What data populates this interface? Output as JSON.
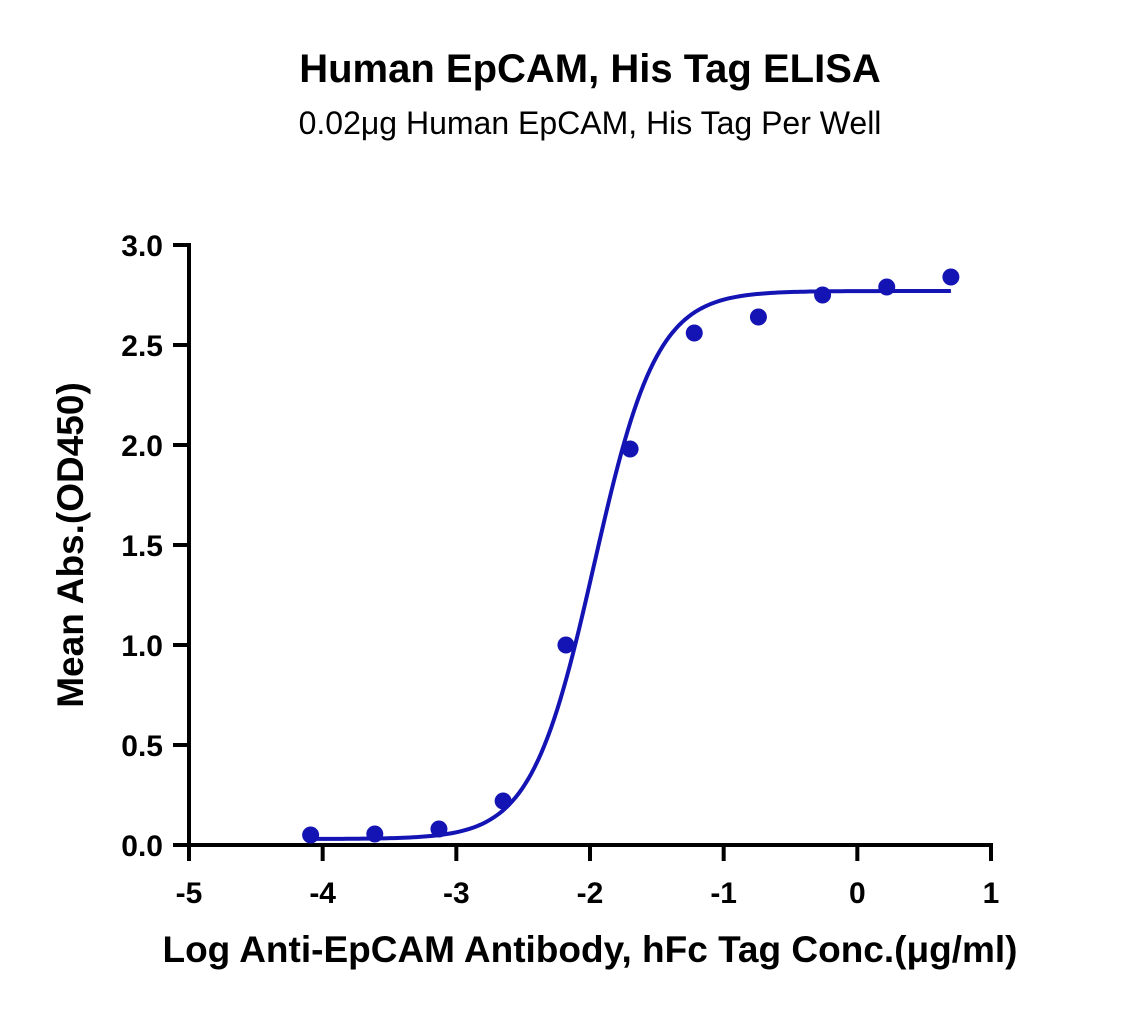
{
  "chart_data": {
    "type": "scatter",
    "title": "Human EpCAM, His Tag ELISA",
    "subtitle": "0.02μg Human EpCAM, His Tag Per Well",
    "xlabel": "Log Anti-EpCAM Antibody, hFc Tag Conc.(μg/ml)",
    "ylabel": "Mean Abs.(OD450)",
    "xlim": [
      -5,
      1
    ],
    "ylim": [
      0,
      3
    ],
    "x_ticks": [
      -5,
      -4,
      -3,
      -2,
      -1,
      0,
      1
    ],
    "x_tick_labels": [
      "-5",
      "-4",
      "-3",
      "-2",
      "-1",
      "0",
      "1"
    ],
    "y_ticks": [
      0,
      0.5,
      1,
      1.5,
      2,
      2.5,
      3
    ],
    "y_tick_labels": [
      "0.0",
      "0.5",
      "1.0",
      "1.5",
      "2.0",
      "2.5",
      "3.0"
    ],
    "grid": false,
    "color": "#1414b4",
    "points": {
      "x": [
        -4.09,
        -3.61,
        -3.13,
        -2.65,
        -2.18,
        -1.7,
        -1.22,
        -0.74,
        -0.26,
        0.22,
        0.7
      ],
      "y": [
        0.05,
        0.055,
        0.08,
        0.22,
        1.0,
        1.98,
        2.56,
        2.64,
        2.75,
        2.79,
        2.84
      ]
    },
    "fit": {
      "model": "4PL",
      "bottom": 0.03,
      "top": 2.77,
      "logEC50": -1.97,
      "hill": 1.85,
      "x_range": [
        -4.09,
        0.7
      ]
    }
  }
}
